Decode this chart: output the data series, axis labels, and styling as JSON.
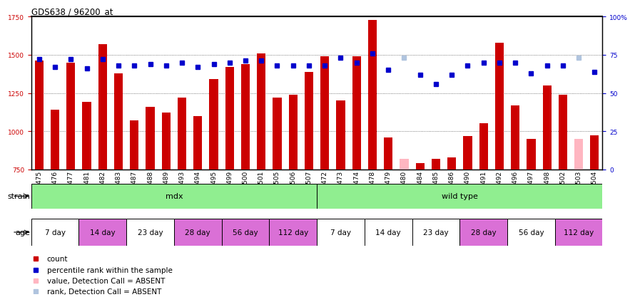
{
  "title": "GDS638 / 96200_at",
  "samples": [
    "GSM16475",
    "GSM16476",
    "GSM16477",
    "GSM16481",
    "GSM16482",
    "GSM16483",
    "GSM16487",
    "GSM16488",
    "GSM16489",
    "GSM16493",
    "GSM16494",
    "GSM16495",
    "GSM16499",
    "GSM16500",
    "GSM16501",
    "GSM16505",
    "GSM16506",
    "GSM16507",
    "GSM16472",
    "GSM16473",
    "GSM16474",
    "GSM16478",
    "GSM16479",
    "GSM16480",
    "GSM16484",
    "GSM16485",
    "GSM16486",
    "GSM16490",
    "GSM16491",
    "GSM16492",
    "GSM16496",
    "GSM16497",
    "GSM16498",
    "GSM16502",
    "GSM16503",
    "GSM16504"
  ],
  "count_values": [
    1460,
    1140,
    1450,
    1190,
    1570,
    1380,
    1070,
    1160,
    1120,
    1220,
    1100,
    1340,
    1420,
    1440,
    1510,
    1220,
    1240,
    1390,
    1490,
    1200,
    1490,
    1730,
    960,
    820,
    790,
    820,
    830,
    970,
    1050,
    1580,
    1170,
    950,
    1300,
    1240,
    950,
    975
  ],
  "percentile_values": [
    72,
    67,
    72,
    66,
    72,
    68,
    68,
    69,
    68,
    70,
    67,
    69,
    70,
    71,
    71,
    68,
    68,
    68,
    68,
    73,
    70,
    76,
    65,
    73,
    62,
    56,
    62,
    68,
    70,
    70,
    70,
    63,
    68,
    68,
    73,
    64
  ],
  "absent_count": [
    false,
    false,
    false,
    false,
    false,
    false,
    false,
    false,
    false,
    false,
    false,
    false,
    false,
    false,
    false,
    false,
    false,
    false,
    false,
    false,
    false,
    false,
    false,
    true,
    false,
    false,
    false,
    false,
    false,
    false,
    false,
    false,
    false,
    false,
    true,
    false
  ],
  "absent_rank": [
    false,
    false,
    false,
    false,
    false,
    false,
    false,
    false,
    false,
    false,
    false,
    false,
    false,
    false,
    false,
    false,
    false,
    false,
    false,
    false,
    false,
    false,
    false,
    true,
    false,
    false,
    false,
    false,
    false,
    false,
    false,
    false,
    false,
    false,
    true,
    false
  ],
  "strain_groups": [
    {
      "label": "mdx",
      "start": 0,
      "end": 18,
      "color": "#90ee90"
    },
    {
      "label": "wild type",
      "start": 18,
      "end": 36,
      "color": "#90ee90"
    }
  ],
  "age_groups": [
    {
      "label": "7 day",
      "start": 0,
      "end": 3,
      "color": "#ffffff"
    },
    {
      "label": "14 day",
      "start": 3,
      "end": 6,
      "color": "#da70d6"
    },
    {
      "label": "23 day",
      "start": 6,
      "end": 9,
      "color": "#ffffff"
    },
    {
      "label": "28 day",
      "start": 9,
      "end": 12,
      "color": "#da70d6"
    },
    {
      "label": "56 day",
      "start": 12,
      "end": 15,
      "color": "#da70d6"
    },
    {
      "label": "112 day",
      "start": 15,
      "end": 18,
      "color": "#da70d6"
    },
    {
      "label": "7 day",
      "start": 18,
      "end": 21,
      "color": "#ffffff"
    },
    {
      "label": "14 day",
      "start": 21,
      "end": 24,
      "color": "#ffffff"
    },
    {
      "label": "23 day",
      "start": 24,
      "end": 27,
      "color": "#ffffff"
    },
    {
      "label": "28 day",
      "start": 27,
      "end": 30,
      "color": "#da70d6"
    },
    {
      "label": "56 day",
      "start": 30,
      "end": 33,
      "color": "#ffffff"
    },
    {
      "label": "112 day",
      "start": 33,
      "end": 36,
      "color": "#da70d6"
    }
  ],
  "ylim_left": [
    750,
    1750
  ],
  "ylim_right": [
    0,
    100
  ],
  "bar_color": "#cc0000",
  "absent_bar_color": "#ffb6c1",
  "percentile_color": "#0000cc",
  "absent_percentile_color": "#b0c4de",
  "grid_color": "#000000",
  "background_color": "#ffffff",
  "bar_width": 0.55,
  "tick_fontsize": 6.5,
  "label_fontsize": 8,
  "xtick_bg": "#d3d3d3"
}
